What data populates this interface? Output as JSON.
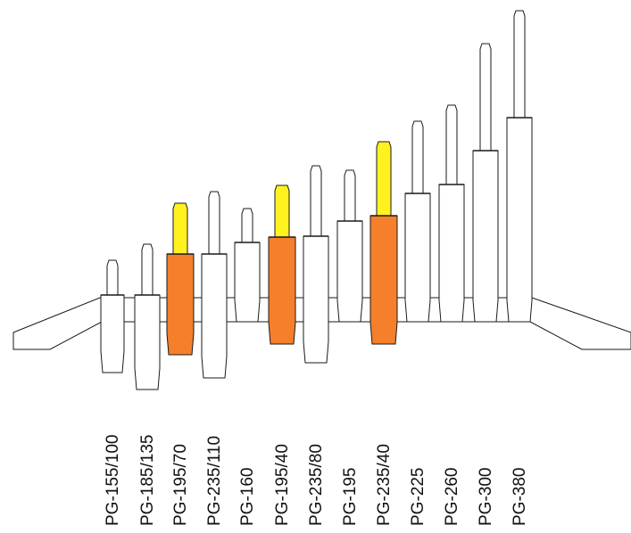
{
  "colors": {
    "outline": "#1a1a1a",
    "body_fill": "#ffffff",
    "highlight_body": "#f57f2a",
    "highlight_tip": "#fff21f"
  },
  "models": [
    {
      "label": "PG-155/100",
      "highlighted": false
    },
    {
      "label": "PG-185/135",
      "highlighted": false
    },
    {
      "label": "PG-195/70",
      "highlighted": true
    },
    {
      "label": "PG-235/110",
      "highlighted": false
    },
    {
      "label": "PG-160",
      "highlighted": false
    },
    {
      "label": "PG-195/40",
      "highlighted": true
    },
    {
      "label": "PG-235/80",
      "highlighted": false
    },
    {
      "label": "PG-195",
      "highlighted": false
    },
    {
      "label": "PG-235/40",
      "highlighted": true
    },
    {
      "label": "PG-225",
      "highlighted": false
    },
    {
      "label": "PG-260",
      "highlighted": false
    },
    {
      "label": "PG-300",
      "highlighted": false
    },
    {
      "label": "PG-380",
      "highlighted": false
    }
  ]
}
